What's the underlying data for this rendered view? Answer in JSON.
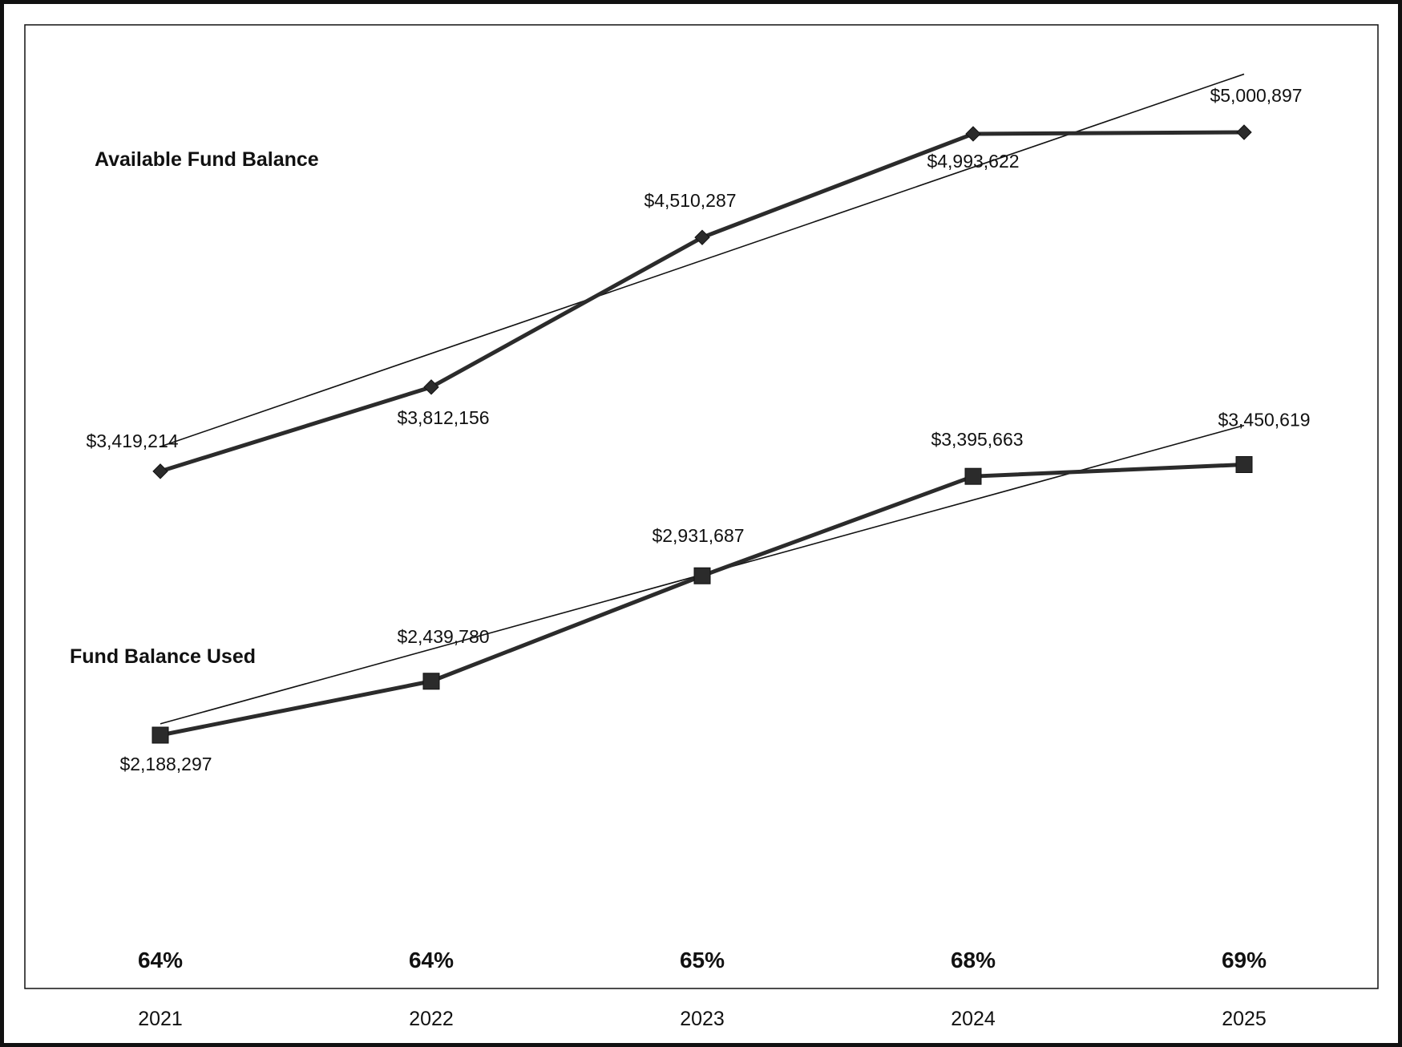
{
  "chart_data": {
    "type": "line",
    "categories": [
      "2021",
      "2022",
      "2023",
      "2024",
      "2025"
    ],
    "series": [
      {
        "name": "Available Fund Balance",
        "values": [
          3419214,
          3812156,
          4510287,
          4993622,
          5000897
        ],
        "labels": [
          "$3,419,214",
          "$3,812,156",
          "$4,510,287",
          "$4,993,622",
          "$5,000,897"
        ],
        "marker": "diamond",
        "trendline": true
      },
      {
        "name": "Fund Balance Used",
        "values": [
          2188297,
          2439780,
          2931687,
          3395663,
          3450619
        ],
        "labels": [
          "$2,188,297",
          "$2,439,780",
          "$2,931,687",
          "$3,395,663",
          "$3,450,619"
        ],
        "marker": "square",
        "trendline": true
      }
    ],
    "percentages": [
      "64%",
      "64%",
      "65%",
      "68%",
      "69%"
    ],
    "grid": false,
    "legend": "none",
    "colors": {
      "line": "#2b2b2b",
      "trend": "#111111",
      "border": "#111111"
    }
  }
}
